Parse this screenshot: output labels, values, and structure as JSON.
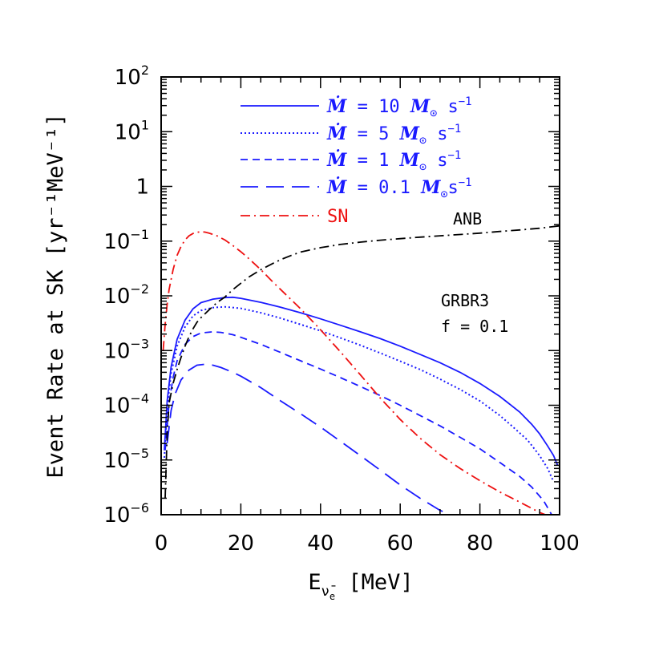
{
  "colors": {
    "blue": "#1a1aff",
    "red": "#ee1111",
    "black": "#000000"
  },
  "chart_data": {
    "type": "line",
    "xlabel": "E",
    "xlabel_sub": "ν̄",
    "xlabel_subsub": "e",
    "xlabel_unit": " [MeV]",
    "ylabel": "Event Rate at SK [yr⁻¹MeV⁻¹]",
    "xlim": [
      0,
      100
    ],
    "ylim": [
      1e-06,
      100
    ],
    "yscale": "log",
    "x_ticks": [
      "0",
      "20",
      "40",
      "60",
      "80",
      "100"
    ],
    "y_ticks": [
      {
        "base": "10",
        "exp": "2"
      },
      {
        "base": "10",
        "exp": "1"
      },
      {
        "base": "1",
        "exp": ""
      },
      {
        "base": "10",
        "exp": "−1"
      },
      {
        "base": "10",
        "exp": "−2"
      },
      {
        "base": "10",
        "exp": "−3"
      },
      {
        "base": "10",
        "exp": "−4"
      },
      {
        "base": "10",
        "exp": "−5"
      },
      {
        "base": "10",
        "exp": "−6"
      }
    ],
    "legend": [
      {
        "symbol": "Ṁ",
        "eq": " = 10 ",
        "unit_symbol": "M",
        "sub": "⊙",
        "rest": " s",
        "sup": "−1",
        "style": "solid",
        "color": "#1a1aff"
      },
      {
        "symbol": "Ṁ",
        "eq": " = 5 ",
        "unit_symbol": "M",
        "sub": "⊙",
        "rest": " s",
        "sup": "−1",
        "style": "dotted",
        "color": "#1a1aff"
      },
      {
        "symbol": "Ṁ",
        "eq": " = 1 ",
        "unit_symbol": "M",
        "sub": "⊙",
        "rest": " s",
        "sup": "−1",
        "style": "dashed",
        "color": "#1a1aff"
      },
      {
        "symbol": "Ṁ",
        "eq": " = 0.1 ",
        "unit_symbol": "M",
        "sub": "⊙",
        "rest": "s",
        "sup": "−1",
        "style": "longdash",
        "color": "#1a1aff"
      },
      {
        "label": "SN",
        "style": "dashdot",
        "color": "#ee1111"
      }
    ],
    "annotations": {
      "anb": "ANB",
      "model": "GRBR3",
      "f": "f = 0.1"
    },
    "series": [
      {
        "style": "solid",
        "color": "#1a1aff",
        "x": [
          0.8,
          1.5,
          2.5,
          4,
          6,
          8,
          10,
          13,
          16,
          18,
          20,
          25,
          30,
          35,
          40,
          45,
          50,
          55,
          60,
          65,
          70,
          75,
          80,
          85,
          90,
          93,
          95,
          97,
          98.5,
          99.5
        ],
        "y": [
          1.5e-05,
          0.00012,
          0.0005,
          0.0016,
          0.0036,
          0.0058,
          0.0075,
          0.0087,
          0.0093,
          0.0094,
          0.009,
          0.0076,
          0.0062,
          0.0049,
          0.0038,
          0.0029,
          0.0022,
          0.00165,
          0.0012,
          0.00085,
          0.0006,
          0.0004,
          0.00025,
          0.000145,
          7.5e-05,
          4.5e-05,
          3e-05,
          1.8e-05,
          1.2e-05,
          8e-06
        ]
      },
      {
        "style": "dotted",
        "color": "#1a1aff",
        "x": [
          0.8,
          1.5,
          2.5,
          4,
          6,
          8,
          10,
          13,
          16,
          20,
          25,
          30,
          35,
          40,
          45,
          50,
          55,
          60,
          65,
          70,
          75,
          80,
          85,
          88,
          92,
          95,
          97,
          98.5
        ],
        "y": [
          1.1e-05,
          9e-05,
          0.00038,
          0.0012,
          0.0027,
          0.0043,
          0.0054,
          0.0061,
          0.0063,
          0.0059,
          0.0049,
          0.0039,
          0.003,
          0.0023,
          0.0017,
          0.00125,
          0.0009,
          0.00064,
          0.00045,
          0.0003,
          0.000195,
          0.00012,
          6.5e-05,
          4.2e-05,
          2.3e-05,
          1.2e-05,
          7e-06,
          4e-06
        ]
      },
      {
        "style": "dashed",
        "color": "#1a1aff",
        "x": [
          1,
          2,
          3,
          4,
          6,
          8,
          10,
          13,
          15,
          18,
          20,
          25,
          30,
          35,
          40,
          45,
          50,
          55,
          60,
          65,
          70,
          75,
          80,
          85,
          90,
          93,
          96,
          98
        ],
        "y": [
          1.5e-05,
          0.00011,
          0.00032,
          0.00065,
          0.0013,
          0.0018,
          0.0021,
          0.0022,
          0.00215,
          0.00195,
          0.00175,
          0.0013,
          0.00092,
          0.00065,
          0.00046,
          0.00032,
          0.00022,
          0.00015,
          0.0001,
          6.5e-05,
          4.2e-05,
          2.6e-05,
          1.6e-05,
          9e-06,
          5e-06,
          3.2e-06,
          1.8e-06,
          1e-06
        ]
      },
      {
        "style": "longdash",
        "color": "#1a1aff",
        "x": [
          1.5,
          2.5,
          3.5,
          5,
          7,
          9,
          11,
          13,
          15,
          18,
          20,
          25,
          30,
          35,
          40,
          45,
          50,
          55,
          60,
          65,
          70,
          74
        ],
        "y": [
          2e-05,
          8e-05,
          0.00016,
          0.00029,
          0.00044,
          0.00054,
          0.00056,
          0.00054,
          0.00049,
          0.0004,
          0.00034,
          0.00021,
          0.00012,
          7e-05,
          4e-05,
          2.2e-05,
          1.2e-05,
          6.5e-06,
          3.5e-06,
          2e-06,
          1.2e-06,
          9e-07
        ]
      },
      {
        "style": "dashdot",
        "color": "#ee1111",
        "x": [
          0.5,
          1,
          1.5,
          2,
          3,
          4,
          5,
          6,
          7,
          8,
          9,
          10,
          11,
          12,
          14,
          16,
          18,
          20,
          22,
          25,
          28,
          30,
          35,
          40,
          45,
          50,
          55,
          60,
          65,
          70,
          75,
          80,
          85,
          90,
          95,
          98
        ],
        "y": [
          0.001,
          0.003,
          0.007,
          0.013,
          0.03,
          0.055,
          0.08,
          0.105,
          0.125,
          0.138,
          0.145,
          0.148,
          0.146,
          0.14,
          0.125,
          0.105,
          0.083,
          0.064,
          0.048,
          0.03,
          0.018,
          0.013,
          0.0058,
          0.0024,
          0.00095,
          0.00036,
          0.000135,
          5.5e-05,
          2.5e-05,
          1.25e-05,
          7e-06,
          4.2e-06,
          2.6e-06,
          1.7e-06,
          1.1e-06,
          9e-07
        ]
      },
      {
        "style": "dashdot",
        "color": "#000000",
        "x": [
          1,
          1.5,
          2,
          3,
          4,
          5,
          6,
          7,
          8,
          9,
          10,
          12,
          14,
          16,
          18,
          20,
          22,
          25,
          28,
          30,
          33,
          35,
          40,
          45,
          50,
          55,
          60,
          65,
          70,
          75,
          80,
          85,
          90,
          95,
          100
        ],
        "y": [
          2e-06,
          3e-05,
          0.00011,
          0.00025,
          0.00045,
          0.00075,
          0.0012,
          0.0018,
          0.0025,
          0.0033,
          0.004,
          0.0055,
          0.0075,
          0.0095,
          0.013,
          0.017,
          0.022,
          0.03,
          0.039,
          0.046,
          0.056,
          0.063,
          0.076,
          0.087,
          0.096,
          0.104,
          0.111,
          0.118,
          0.125,
          0.132,
          0.14,
          0.15,
          0.16,
          0.172,
          0.19
        ]
      }
    ]
  }
}
